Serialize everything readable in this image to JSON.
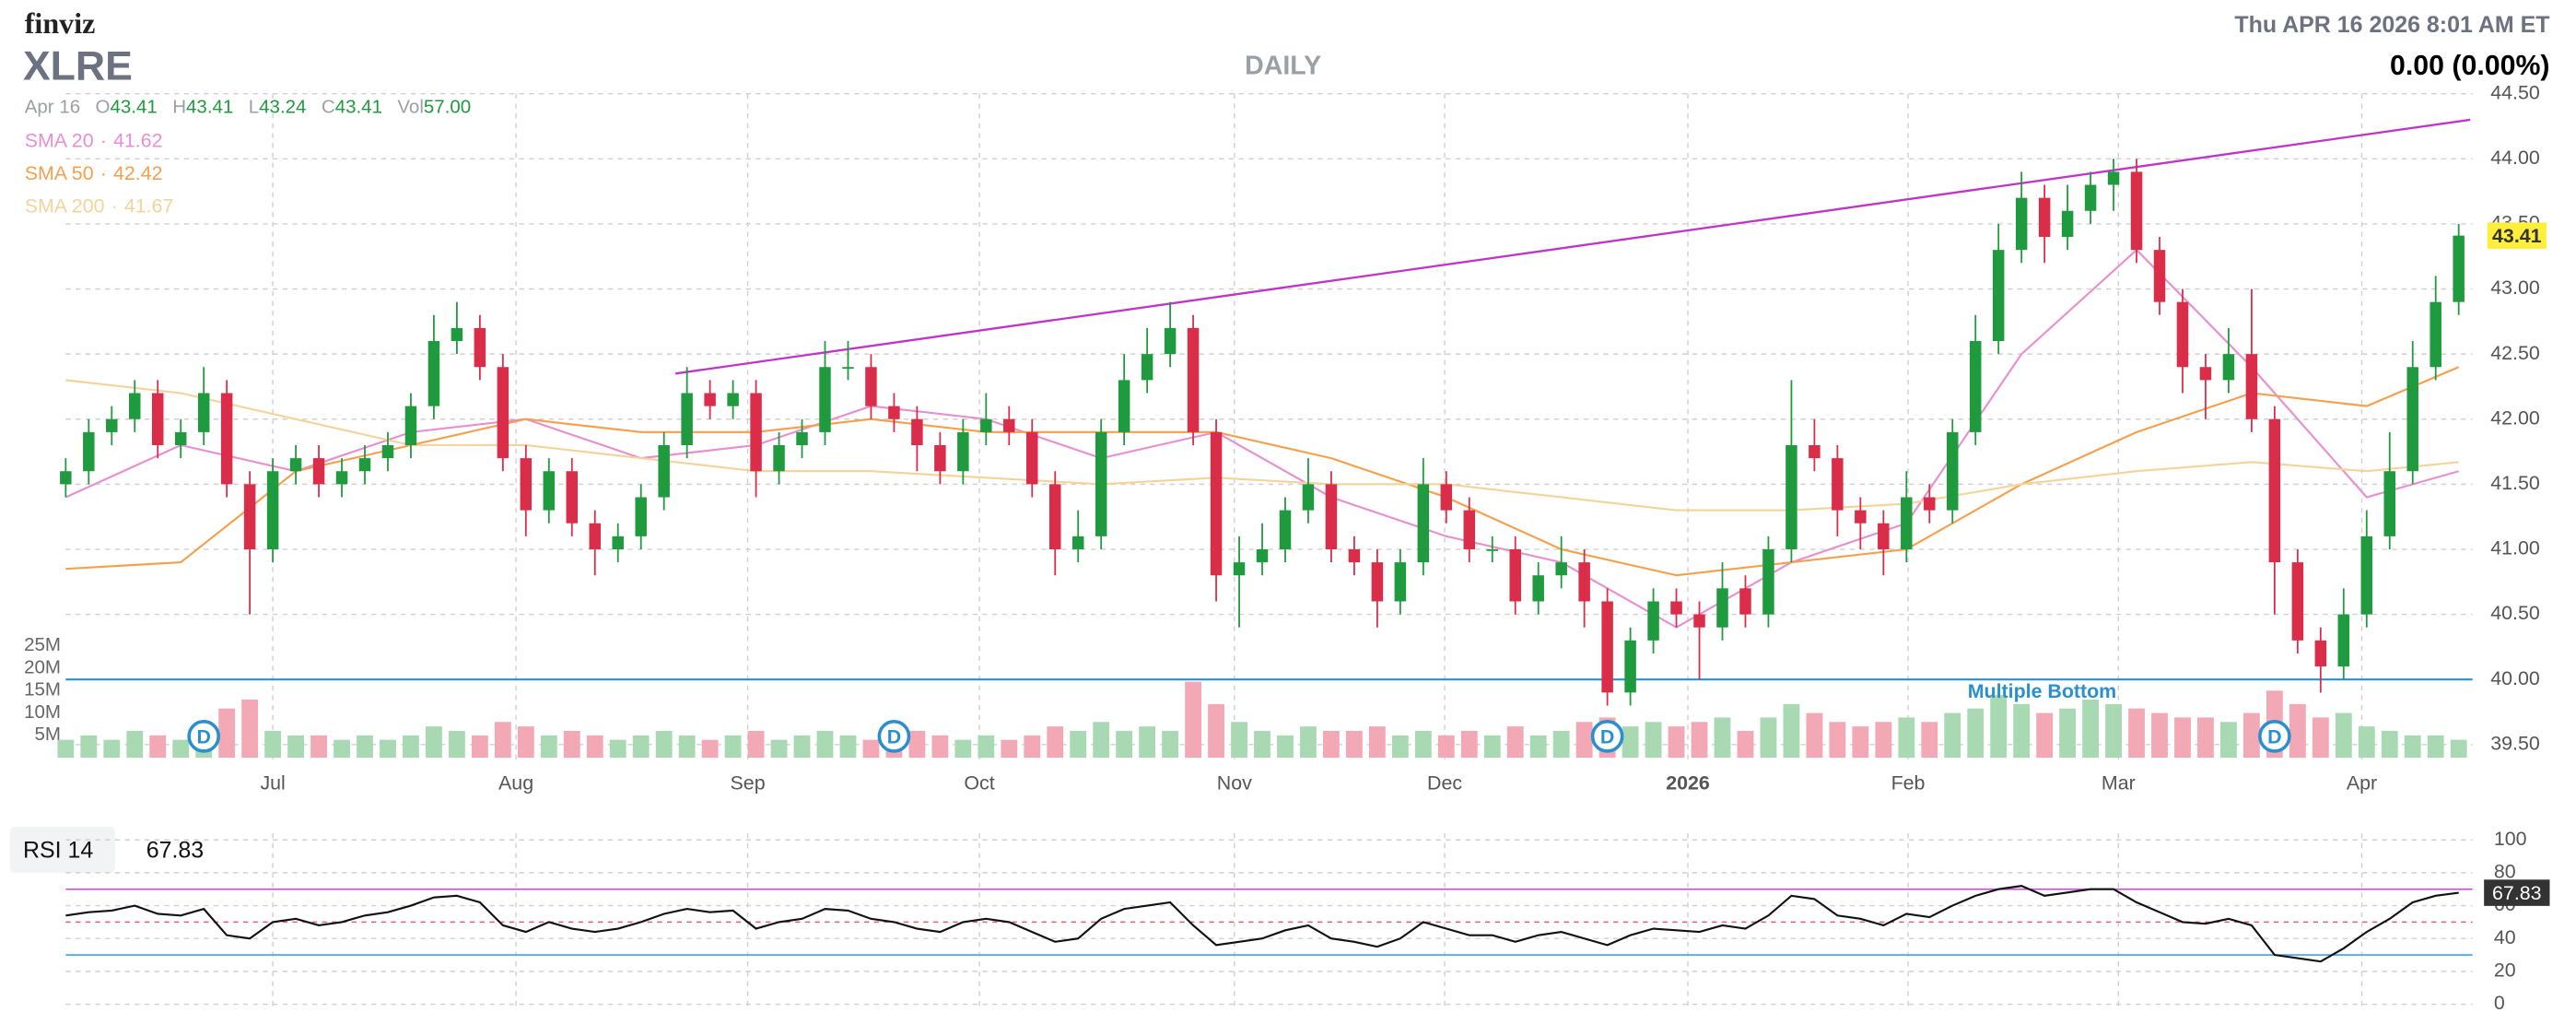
{
  "header": {
    "logo": "finviz",
    "ticker": "XLRE",
    "timeframe": "DAILY",
    "datetime": "Thu APR 16 2026 8:01 AM ET",
    "change": "0.00 (0.00%)"
  },
  "quote": {
    "date": "Apr 16",
    "o_label": "O",
    "open": 43.41,
    "h_label": "H",
    "high": 43.41,
    "l_label": "L",
    "low": 43.24,
    "c_label": "C",
    "close": 43.41,
    "vol_label": "Vol",
    "volume": "57.00"
  },
  "chart_data": {
    "type": "candlestick",
    "up_color": "#1f9a3e",
    "down_color": "#d92d4a",
    "vol_up_color": "#a9d9b3",
    "vol_down_color": "#f3a9b5",
    "xlim": [
      -0.5,
      104.6
    ],
    "xticks": [
      {
        "value": 9,
        "label": "Jul"
      },
      {
        "value": 19.57,
        "label": "Aug"
      },
      {
        "value": 29.64,
        "label": "Sep"
      },
      {
        "value": 39.71,
        "label": "Oct"
      },
      {
        "value": 50.79,
        "label": "Nov"
      },
      {
        "value": 59.93,
        "label": "Dec"
      },
      {
        "value": 70.5,
        "label": "2026"
      },
      {
        "value": 80.07,
        "label": "Feb"
      },
      {
        "value": 89.21,
        "label": "Mar"
      },
      {
        "value": 99.79,
        "label": "Apr"
      }
    ],
    "ylim": [
      39.5,
      44.5
    ],
    "yticks": [
      {
        "value": 39.5,
        "label": "39.50"
      },
      {
        "value": 40,
        "label": "40.00"
      },
      {
        "value": 40.5,
        "label": "40.50"
      },
      {
        "value": 41,
        "label": "41.00"
      },
      {
        "value": 41.5,
        "label": "41.50"
      },
      {
        "value": 42,
        "label": "42.00"
      },
      {
        "value": 42.5,
        "label": "42.50"
      },
      {
        "value": 43,
        "label": "43.00"
      },
      {
        "value": 43.5,
        "label": "43.50"
      },
      {
        "value": 44,
        "label": "44.00"
      },
      {
        "value": 44.5,
        "label": "44.50"
      }
    ],
    "grid": true,
    "ohlc": [
      [
        41.5,
        41.7,
        41.4,
        41.6
      ],
      [
        41.6,
        42.0,
        41.5,
        41.9
      ],
      [
        41.9,
        42.1,
        41.8,
        42.0
      ],
      [
        42.0,
        42.3,
        41.9,
        42.2
      ],
      [
        42.2,
        42.3,
        41.7,
        41.8
      ],
      [
        41.8,
        42.0,
        41.7,
        41.9
      ],
      [
        41.9,
        42.4,
        41.8,
        42.2
      ],
      [
        42.2,
        42.3,
        41.4,
        41.5
      ],
      [
        41.5,
        41.6,
        40.5,
        41.0
      ],
      [
        41.0,
        41.7,
        40.9,
        41.6
      ],
      [
        41.6,
        41.8,
        41.5,
        41.7
      ],
      [
        41.7,
        41.8,
        41.4,
        41.5
      ],
      [
        41.5,
        41.7,
        41.4,
        41.6
      ],
      [
        41.6,
        41.8,
        41.5,
        41.7
      ],
      [
        41.7,
        41.9,
        41.6,
        41.8
      ],
      [
        41.8,
        42.2,
        41.7,
        42.1
      ],
      [
        42.1,
        42.8,
        42.0,
        42.6
      ],
      [
        42.6,
        42.9,
        42.5,
        42.7
      ],
      [
        42.7,
        42.8,
        42.3,
        42.4
      ],
      [
        42.4,
        42.5,
        41.6,
        41.7
      ],
      [
        41.7,
        41.8,
        41.1,
        41.3
      ],
      [
        41.3,
        41.7,
        41.2,
        41.6
      ],
      [
        41.6,
        41.7,
        41.1,
        41.2
      ],
      [
        41.2,
        41.3,
        40.8,
        41.0
      ],
      [
        41.0,
        41.2,
        40.9,
        41.1
      ],
      [
        41.1,
        41.5,
        41.0,
        41.4
      ],
      [
        41.4,
        41.9,
        41.3,
        41.8
      ],
      [
        41.8,
        42.4,
        41.7,
        42.2
      ],
      [
        42.2,
        42.3,
        42.0,
        42.1
      ],
      [
        42.1,
        42.3,
        42.0,
        42.2
      ],
      [
        42.2,
        42.3,
        41.4,
        41.6
      ],
      [
        41.6,
        41.9,
        41.5,
        41.8
      ],
      [
        41.8,
        42.0,
        41.7,
        41.9
      ],
      [
        41.9,
        42.6,
        41.8,
        42.4
      ],
      [
        42.4,
        42.6,
        42.3,
        42.4
      ],
      [
        42.4,
        42.5,
        42.0,
        42.1
      ],
      [
        42.1,
        42.2,
        41.9,
        42.0
      ],
      [
        42.0,
        42.1,
        41.6,
        41.8
      ],
      [
        41.8,
        41.9,
        41.5,
        41.6
      ],
      [
        41.6,
        42.0,
        41.5,
        41.9
      ],
      [
        41.9,
        42.2,
        41.8,
        42.0
      ],
      [
        42.0,
        42.1,
        41.8,
        41.9
      ],
      [
        41.9,
        42.0,
        41.4,
        41.5
      ],
      [
        41.5,
        41.6,
        40.8,
        41.0
      ],
      [
        41.0,
        41.3,
        40.9,
        41.1
      ],
      [
        41.1,
        42.0,
        41.0,
        41.9
      ],
      [
        41.9,
        42.5,
        41.8,
        42.3
      ],
      [
        42.3,
        42.7,
        42.2,
        42.5
      ],
      [
        42.5,
        42.9,
        42.4,
        42.7
      ],
      [
        42.7,
        42.8,
        41.8,
        41.9
      ],
      [
        41.9,
        42.0,
        40.6,
        40.8
      ],
      [
        40.8,
        41.1,
        40.4,
        40.9
      ],
      [
        40.9,
        41.2,
        40.8,
        41.0
      ],
      [
        41.0,
        41.4,
        40.9,
        41.3
      ],
      [
        41.3,
        41.7,
        41.2,
        41.5
      ],
      [
        41.5,
        41.6,
        40.9,
        41.0
      ],
      [
        41.0,
        41.1,
        40.8,
        40.9
      ],
      [
        40.9,
        41.0,
        40.4,
        40.6
      ],
      [
        40.6,
        41.0,
        40.5,
        40.9
      ],
      [
        40.9,
        41.7,
        40.8,
        41.5
      ],
      [
        41.5,
        41.6,
        41.2,
        41.3
      ],
      [
        41.3,
        41.4,
        40.9,
        41.0
      ],
      [
        41.0,
        41.1,
        40.9,
        41.0
      ],
      [
        41.0,
        41.1,
        40.5,
        40.6
      ],
      [
        40.6,
        40.9,
        40.5,
        40.8
      ],
      [
        40.8,
        41.1,
        40.7,
        40.9
      ],
      [
        40.9,
        41.0,
        40.4,
        40.6
      ],
      [
        40.6,
        40.7,
        39.8,
        39.9
      ],
      [
        39.9,
        40.4,
        39.8,
        40.3
      ],
      [
        40.3,
        40.7,
        40.2,
        40.6
      ],
      [
        40.6,
        40.7,
        40.4,
        40.5
      ],
      [
        40.5,
        40.6,
        40.0,
        40.4
      ],
      [
        40.4,
        40.9,
        40.3,
        40.7
      ],
      [
        40.7,
        40.8,
        40.4,
        40.5
      ],
      [
        40.5,
        41.1,
        40.4,
        41.0
      ],
      [
        41.0,
        42.3,
        40.9,
        41.8
      ],
      [
        41.8,
        42.0,
        41.6,
        41.7
      ],
      [
        41.7,
        41.8,
        41.1,
        41.3
      ],
      [
        41.3,
        41.4,
        41.0,
        41.2
      ],
      [
        41.2,
        41.3,
        40.8,
        41.0
      ],
      [
        41.0,
        41.6,
        40.9,
        41.4
      ],
      [
        41.4,
        41.5,
        41.2,
        41.3
      ],
      [
        41.3,
        42.0,
        41.2,
        41.9
      ],
      [
        41.9,
        42.8,
        41.8,
        42.6
      ],
      [
        42.6,
        43.5,
        42.5,
        43.3
      ],
      [
        43.3,
        43.9,
        43.2,
        43.7
      ],
      [
        43.7,
        43.8,
        43.2,
        43.4
      ],
      [
        43.4,
        43.8,
        43.3,
        43.6
      ],
      [
        43.6,
        43.9,
        43.5,
        43.8
      ],
      [
        43.8,
        44.0,
        43.6,
        43.9
      ],
      [
        43.9,
        44.0,
        43.2,
        43.3
      ],
      [
        43.3,
        43.4,
        42.8,
        42.9
      ],
      [
        42.9,
        43.0,
        42.2,
        42.4
      ],
      [
        42.4,
        42.5,
        42.0,
        42.3
      ],
      [
        42.3,
        42.7,
        42.2,
        42.5
      ],
      [
        42.5,
        43.0,
        41.9,
        42.0
      ],
      [
        42.0,
        42.1,
        40.5,
        40.9
      ],
      [
        40.9,
        41.0,
        40.2,
        40.3
      ],
      [
        40.3,
        40.4,
        39.9,
        40.1
      ],
      [
        40.1,
        40.7,
        40.0,
        40.5
      ],
      [
        40.5,
        41.3,
        40.4,
        41.1
      ],
      [
        41.1,
        41.9,
        41.0,
        41.6
      ],
      [
        41.6,
        42.6,
        41.5,
        42.4
      ],
      [
        42.4,
        43.1,
        42.3,
        42.9
      ],
      [
        42.9,
        43.5,
        42.8,
        43.41
      ]
    ],
    "sma": [
      {
        "name": "SMA 20",
        "sep": "·",
        "last": 41.62,
        "color": "#e88fd0",
        "x": [
          0,
          5,
          10,
          15,
          20,
          25,
          30,
          35,
          40,
          45,
          50,
          55,
          60,
          65,
          70,
          75,
          80,
          85,
          90,
          95,
          100,
          104
        ],
        "values": [
          41.4,
          41.8,
          41.6,
          41.9,
          42.0,
          41.7,
          41.8,
          42.1,
          42.0,
          41.7,
          41.9,
          41.4,
          41.1,
          40.9,
          40.4,
          40.9,
          41.2,
          42.5,
          43.3,
          42.4,
          41.4,
          41.6
        ]
      },
      {
        "name": "SMA 50",
        "sep": "·",
        "last": 42.42,
        "color": "#f5a04e",
        "x": [
          0,
          5,
          10,
          15,
          20,
          25,
          30,
          35,
          40,
          45,
          50,
          55,
          60,
          65,
          70,
          75,
          80,
          85,
          90,
          95,
          100,
          104
        ],
        "values": [
          40.85,
          40.9,
          41.6,
          41.8,
          42.0,
          41.9,
          41.9,
          42.0,
          41.9,
          41.9,
          41.9,
          41.7,
          41.4,
          41.0,
          40.8,
          40.9,
          41.0,
          41.5,
          41.9,
          42.2,
          42.1,
          42.4
        ]
      },
      {
        "name": "SMA 200",
        "sep": "·",
        "last": 41.67,
        "color": "#f4d39b",
        "x": [
          0,
          5,
          10,
          15,
          20,
          25,
          30,
          35,
          40,
          45,
          50,
          55,
          60,
          65,
          70,
          75,
          80,
          85,
          90,
          95,
          100,
          104
        ],
        "values": [
          42.3,
          42.2,
          42.0,
          41.8,
          41.8,
          41.7,
          41.6,
          41.6,
          41.55,
          41.5,
          41.55,
          41.5,
          41.5,
          41.4,
          41.3,
          41.3,
          41.35,
          41.5,
          41.6,
          41.67,
          41.6,
          41.67
        ]
      }
    ],
    "trendline": {
      "color": "#c034c8",
      "x": [
        26.5,
        104.5
      ],
      "values": [
        42.35,
        44.3
      ]
    },
    "support": {
      "label": "Multiple Bottom",
      "value": 40.0,
      "color": "#2a8fd1"
    },
    "dividends": {
      "label": "D",
      "color": "#2a8fd1",
      "x": [
        6,
        36,
        67,
        96
      ]
    },
    "volume": {
      "ylim": [
        0,
        25
      ],
      "yticks": [
        {
          "value": 5,
          "label": "5M"
        },
        {
          "value": 10,
          "label": "10M"
        },
        {
          "value": 15,
          "label": "15M"
        },
        {
          "value": 20,
          "label": "20M"
        },
        {
          "value": 25,
          "label": "25M"
        }
      ],
      "values": [
        4,
        5,
        4,
        6,
        5,
        4,
        8,
        11,
        13,
        6,
        5,
        5,
        4,
        5,
        4,
        5,
        7,
        6,
        5,
        8,
        7,
        5,
        6,
        5,
        4,
        5,
        6,
        5,
        4,
        5,
        6,
        4,
        5,
        6,
        5,
        4,
        5,
        6,
        5,
        4,
        5,
        4,
        5,
        7,
        6,
        8,
        6,
        7,
        6,
        17,
        12,
        8,
        6,
        5,
        7,
        6,
        6,
        7,
        5,
        6,
        5,
        6,
        5,
        7,
        5,
        6,
        8,
        9,
        7,
        8,
        7,
        8,
        9,
        6,
        9,
        12,
        10,
        8,
        7,
        8,
        9,
        8,
        10,
        11,
        14,
        12,
        10,
        11,
        13,
        12,
        11,
        10,
        9,
        9,
        8,
        10,
        15,
        12,
        9,
        10,
        7,
        6,
        5,
        5,
        4
      ]
    },
    "rsi": {
      "name": "RSI 14",
      "color": "#111111",
      "ylim": [
        0,
        100
      ],
      "yticks": [
        0,
        20,
        40,
        60,
        80,
        100
      ],
      "overbought": 70,
      "oversold": 30,
      "mid": 50,
      "values": [
        54,
        56,
        57,
        60,
        55,
        54,
        58,
        42,
        40,
        50,
        52,
        48,
        50,
        54,
        56,
        60,
        65,
        66,
        62,
        48,
        44,
        50,
        46,
        44,
        46,
        50,
        55,
        58,
        56,
        57,
        46,
        50,
        52,
        58,
        57,
        52,
        50,
        46,
        44,
        50,
        52,
        50,
        44,
        38,
        40,
        52,
        58,
        60,
        62,
        48,
        36,
        38,
        40,
        45,
        48,
        40,
        38,
        35,
        40,
        50,
        46,
        42,
        42,
        38,
        42,
        44,
        40,
        36,
        42,
        46,
        45,
        44,
        48,
        46,
        54,
        66,
        64,
        54,
        52,
        48,
        55,
        53,
        60,
        66,
        70,
        72,
        66,
        68,
        70,
        70,
        62,
        56,
        50,
        49,
        52,
        48,
        30,
        28,
        26,
        34,
        44,
        52,
        62,
        66,
        67.83
      ]
    }
  }
}
